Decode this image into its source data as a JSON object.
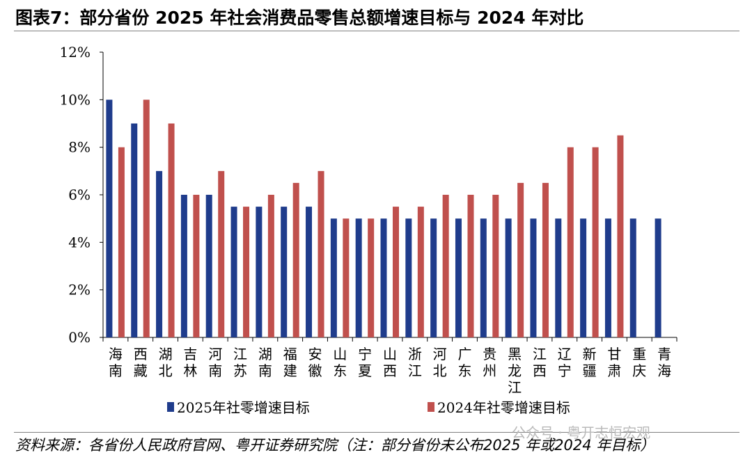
{
  "title": "图表7：部分省份 2025 年社会消费品零售总额增速目标与 2024 年对比",
  "source": "资料来源：各省份人民政府官网、粤开证券研究院（注：部分省份未公布2025 年或2024 年目标）",
  "watermark": "公众号 · 粤开志恒宏观",
  "colors": {
    "series2025": "#1f3c8c",
    "series2024": "#c0504d"
  },
  "chart_data": {
    "type": "bar",
    "categories": [
      "海南",
      "西藏",
      "湖北",
      "吉林",
      "河南",
      "江苏",
      "湖南",
      "福建",
      "安徽",
      "山东",
      "宁夏",
      "山西",
      "浙江",
      "河北",
      "广东",
      "贵州",
      "黑龙江",
      "江西",
      "辽宁",
      "新疆",
      "甘肃",
      "重庆",
      "青海"
    ],
    "category_lines": [
      [
        "海",
        "南"
      ],
      [
        "西",
        "藏"
      ],
      [
        "湖",
        "北"
      ],
      [
        "吉",
        "林"
      ],
      [
        "河",
        "南"
      ],
      [
        "江",
        "苏"
      ],
      [
        "湖",
        "南"
      ],
      [
        "福",
        "建"
      ],
      [
        "安",
        "徽"
      ],
      [
        "山",
        "东"
      ],
      [
        "宁",
        "夏"
      ],
      [
        "山",
        "西"
      ],
      [
        "浙",
        "江"
      ],
      [
        "河",
        "北"
      ],
      [
        "广",
        "东"
      ],
      [
        "贵",
        "州"
      ],
      [
        "黑",
        "龙",
        "江"
      ],
      [
        "江",
        "西"
      ],
      [
        "辽",
        "宁"
      ],
      [
        "新",
        "疆"
      ],
      [
        "甘",
        "肃"
      ],
      [
        "重",
        "庆"
      ],
      [
        "青",
        "海"
      ]
    ],
    "series": [
      {
        "name": "2025年社零增速目标",
        "values": [
          10,
          9,
          7,
          6,
          6,
          5.5,
          5.5,
          5.5,
          5.5,
          5,
          5,
          5,
          5,
          5,
          5,
          5,
          5,
          5,
          5,
          5,
          5,
          5,
          5
        ]
      },
      {
        "name": "2024年社零增速目标",
        "values": [
          8,
          10,
          9,
          6,
          7,
          5.5,
          6,
          6.5,
          7,
          5,
          5,
          5.5,
          5.5,
          6,
          6,
          6,
          6.5,
          6.5,
          8,
          8,
          8.5,
          null,
          null
        ]
      }
    ],
    "ylim": [
      0,
      12
    ],
    "yticks": [
      "0%",
      "2%",
      "4%",
      "6%",
      "8%",
      "10%",
      "12%"
    ],
    "legend_position": "bottom",
    "grid": false
  }
}
